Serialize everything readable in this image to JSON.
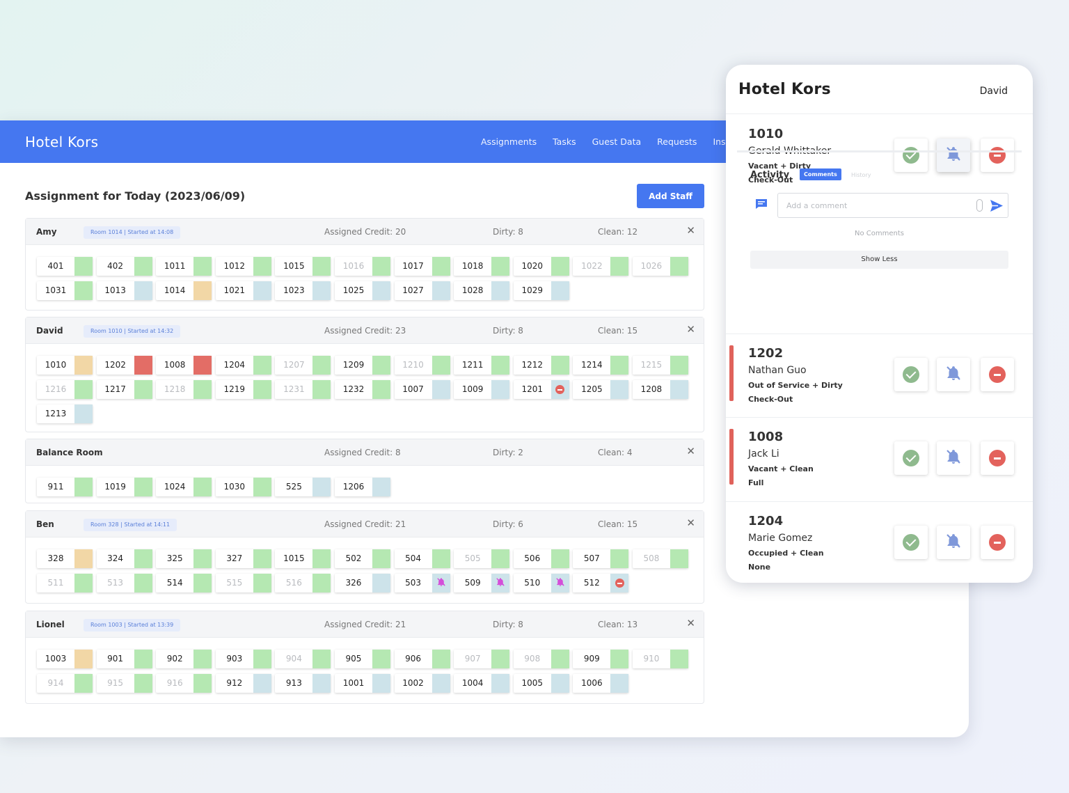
{
  "app": {
    "brand": "Hotel Kors",
    "nav": [
      "Assignments",
      "Tasks",
      "Guest Data",
      "Requests",
      "Inspe"
    ]
  },
  "assignment": {
    "title": "Assignment for Today (2023/06/09)",
    "add_staff_label": "Add Staff",
    "groups": [
      {
        "name": "Amy",
        "badge": "Room 1014 | Started at 14:08",
        "credit": "Assigned Credit: 20",
        "dirty": "Dirty: 8",
        "clean": "Clean: 12",
        "rooms": [
          {
            "n": "401",
            "s": "green"
          },
          {
            "n": "402",
            "s": "green"
          },
          {
            "n": "1011",
            "s": "green"
          },
          {
            "n": "1012",
            "s": "green"
          },
          {
            "n": "1015",
            "s": "green"
          },
          {
            "n": "1016",
            "s": "green",
            "dim": true
          },
          {
            "n": "1017",
            "s": "green"
          },
          {
            "n": "1018",
            "s": "green"
          },
          {
            "n": "1020",
            "s": "green"
          },
          {
            "n": "1022",
            "s": "green",
            "dim": true
          },
          {
            "n": "1026",
            "s": "green",
            "dim": true
          },
          {
            "n": "1031",
            "s": "green"
          },
          {
            "n": "1013",
            "s": "blue"
          },
          {
            "n": "1014",
            "s": "orange"
          },
          {
            "n": "1021",
            "s": "blue"
          },
          {
            "n": "1023",
            "s": "blue"
          },
          {
            "n": "1025",
            "s": "blue"
          },
          {
            "n": "1027",
            "s": "blue"
          },
          {
            "n": "1028",
            "s": "blue"
          },
          {
            "n": "1029",
            "s": "blue"
          }
        ]
      },
      {
        "name": "David",
        "badge": "Room 1010 | Started at 14:32",
        "credit": "Assigned Credit: 23",
        "dirty": "Dirty: 8",
        "clean": "Clean: 15",
        "rooms": [
          {
            "n": "1010",
            "s": "orange"
          },
          {
            "n": "1202",
            "s": "red"
          },
          {
            "n": "1008",
            "s": "red"
          },
          {
            "n": "1204",
            "s": "green"
          },
          {
            "n": "1207",
            "s": "green",
            "dim": true
          },
          {
            "n": "1209",
            "s": "green"
          },
          {
            "n": "1210",
            "s": "green",
            "dim": true
          },
          {
            "n": "1211",
            "s": "green"
          },
          {
            "n": "1212",
            "s": "green"
          },
          {
            "n": "1214",
            "s": "green"
          },
          {
            "n": "1215",
            "s": "green",
            "dim": true
          },
          {
            "n": "1216",
            "s": "green",
            "dim": true
          },
          {
            "n": "1217",
            "s": "green"
          },
          {
            "n": "1218",
            "s": "green",
            "dim": true
          },
          {
            "n": "1219",
            "s": "green"
          },
          {
            "n": "1231",
            "s": "green",
            "dim": true
          },
          {
            "n": "1232",
            "s": "green"
          },
          {
            "n": "1007",
            "s": "blue"
          },
          {
            "n": "1009",
            "s": "blue"
          },
          {
            "n": "1201",
            "s": "blue",
            "icon": "dnd"
          },
          {
            "n": "1205",
            "s": "blue"
          },
          {
            "n": "1208",
            "s": "blue"
          },
          {
            "n": "1213",
            "s": "blue"
          }
        ]
      },
      {
        "name": "Balance Room",
        "badge": "",
        "credit": "Assigned Credit: 8",
        "dirty": "Dirty: 2",
        "clean": "Clean: 4",
        "rooms": [
          {
            "n": "911",
            "s": "green"
          },
          {
            "n": "1019",
            "s": "green"
          },
          {
            "n": "1024",
            "s": "green"
          },
          {
            "n": "1030",
            "s": "green"
          },
          {
            "n": "525",
            "s": "blue"
          },
          {
            "n": "1206",
            "s": "blue"
          }
        ]
      },
      {
        "name": "Ben",
        "badge": "Room 328 | Started at 14:11",
        "credit": "Assigned Credit: 21",
        "dirty": "Dirty: 6",
        "clean": "Clean: 15",
        "rooms": [
          {
            "n": "328",
            "s": "orange"
          },
          {
            "n": "324",
            "s": "green"
          },
          {
            "n": "325",
            "s": "green"
          },
          {
            "n": "327",
            "s": "green"
          },
          {
            "n": "1015",
            "s": "green"
          },
          {
            "n": "502",
            "s": "green"
          },
          {
            "n": "504",
            "s": "green"
          },
          {
            "n": "505",
            "s": "green",
            "dim": true
          },
          {
            "n": "506",
            "s": "green"
          },
          {
            "n": "507",
            "s": "green"
          },
          {
            "n": "508",
            "s": "green",
            "dim": true
          },
          {
            "n": "511",
            "s": "green",
            "dim": true
          },
          {
            "n": "513",
            "s": "green",
            "dim": true
          },
          {
            "n": "514",
            "s": "green"
          },
          {
            "n": "515",
            "s": "green",
            "dim": true
          },
          {
            "n": "516",
            "s": "green",
            "dim": true
          },
          {
            "n": "326",
            "s": "blue"
          },
          {
            "n": "503",
            "s": "blue",
            "icon": "bell"
          },
          {
            "n": "509",
            "s": "blue",
            "icon": "bell"
          },
          {
            "n": "510",
            "s": "blue",
            "icon": "bell"
          },
          {
            "n": "512",
            "s": "blue",
            "icon": "dnd"
          }
        ]
      },
      {
        "name": "Lionel",
        "badge": "Room 1003 | Started at 13:39",
        "credit": "Assigned Credit: 21",
        "dirty": "Dirty: 8",
        "clean": "Clean: 13",
        "rooms": [
          {
            "n": "1003",
            "s": "orange"
          },
          {
            "n": "901",
            "s": "green"
          },
          {
            "n": "902",
            "s": "green"
          },
          {
            "n": "903",
            "s": "green"
          },
          {
            "n": "904",
            "s": "green",
            "dim": true
          },
          {
            "n": "905",
            "s": "green"
          },
          {
            "n": "906",
            "s": "green"
          },
          {
            "n": "907",
            "s": "green",
            "dim": true
          },
          {
            "n": "908",
            "s": "green",
            "dim": true
          },
          {
            "n": "909",
            "s": "green"
          },
          {
            "n": "910",
            "s": "green",
            "dim": true
          },
          {
            "n": "914",
            "s": "green",
            "dim": true
          },
          {
            "n": "915",
            "s": "green",
            "dim": true
          },
          {
            "n": "916",
            "s": "green",
            "dim": true
          },
          {
            "n": "912",
            "s": "blue"
          },
          {
            "n": "913",
            "s": "blue"
          },
          {
            "n": "1001",
            "s": "blue"
          },
          {
            "n": "1002",
            "s": "blue"
          },
          {
            "n": "1004",
            "s": "blue"
          },
          {
            "n": "1005",
            "s": "blue"
          },
          {
            "n": "1006",
            "s": "blue"
          }
        ]
      }
    ]
  },
  "mobile": {
    "brand": "Hotel Kors",
    "user": "David",
    "tasks": [
      {
        "room": "1010",
        "guest": "Gerald Whittaker",
        "status": "Vacant + Dirty",
        "type": "Check-Out",
        "alert": false,
        "bell_active": true
      },
      {
        "room": "1202",
        "guest": "Nathan Guo",
        "status": "Out of Service + Dirty",
        "type": "Check-Out",
        "alert": true,
        "bell_active": false
      },
      {
        "room": "1008",
        "guest": "Jack Li",
        "status": "Vacant + Clean",
        "type": "Full",
        "alert": true,
        "bell_active": false
      },
      {
        "room": "1204",
        "guest": "Marie Gomez",
        "status": "Occupied + Clean",
        "type": "None",
        "alert": false,
        "bell_active": false
      }
    ],
    "activity": {
      "title": "Activity",
      "tab_comments": "Comments",
      "tab_history": "History",
      "comment_placeholder": "Add a comment",
      "no_comments": "No Comments",
      "show_less": "Show Less"
    }
  },
  "colors": {
    "brand_blue": "#4577f0",
    "status_green": "#b5e8b2",
    "status_blue": "#cde3ea",
    "status_orange": "#f2d7a6",
    "status_red": "#e36d66"
  }
}
